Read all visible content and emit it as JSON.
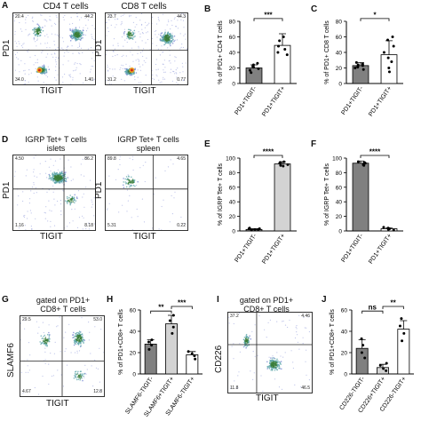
{
  "panels": {
    "A": {
      "letter": "A",
      "titles": [
        "CD4 T cells",
        "CD8 T cells"
      ],
      "x_axis": "TIGIT",
      "y_axis": "PD1",
      "plots": [
        {
          "q": [
            "20.4",
            "44.2",
            "34.0",
            "1.40"
          ]
        },
        {
          "q": [
            "23.7",
            "44.3",
            "31.2",
            "0.77"
          ]
        }
      ]
    },
    "B": {
      "letter": "B"
    },
    "C": {
      "letter": "C"
    },
    "D": {
      "letter": "D",
      "titles": [
        "IGRP Tet+ T cells\nislets",
        "IGRP Tet+ T cells\nspleen"
      ],
      "x_axis": "TIGIT",
      "y_axis": "PD1",
      "plots": [
        {
          "q": [
            "4.50",
            "86.2",
            "1.16",
            "8.18"
          ]
        },
        {
          "q": [
            "89.8",
            "4.65",
            "5.31",
            "0.22"
          ]
        }
      ]
    },
    "E": {
      "letter": "E"
    },
    "F": {
      "letter": "F"
    },
    "G": {
      "letter": "G",
      "title": "gated on PD1+\nCD8+ T cells",
      "x_axis": "TIGIT",
      "y_axis": "SLAMF6",
      "q": [
        "29.5",
        "53.0",
        "4.67",
        "12.8"
      ]
    },
    "H": {
      "letter": "H"
    },
    "I": {
      "letter": "I",
      "title": "gated on PD1+\nCD8+ T cells",
      "x_axis": "TIGIT",
      "y_axis": "CD226",
      "q": [
        "37.2",
        "4.46",
        "11.8",
        "46.5"
      ]
    },
    "J": {
      "letter": "J"
    }
  },
  "chart_data": [
    {
      "panel": "B",
      "type": "bar",
      "ylabel": "% of PD1+ CD4 T cells",
      "ylim": [
        0,
        80
      ],
      "yticks": [
        0,
        20,
        40,
        60,
        80
      ],
      "categories": [
        "PD1+TIGIT-",
        "PD1+TIGIT+"
      ],
      "values": [
        20,
        49
      ],
      "errors": [
        4,
        15
      ],
      "points": [
        [
          14,
          17,
          19,
          21,
          22,
          24,
          26
        ],
        [
          37,
          40,
          44,
          48,
          55,
          60
        ]
      ],
      "colors": [
        "#808080",
        "#ffffff"
      ],
      "sig": [
        {
          "from": 0,
          "to": 1,
          "label": "***"
        }
      ]
    },
    {
      "panel": "C",
      "type": "bar",
      "ylabel": "% of PD1+ CD8 T cells",
      "ylim": [
        0,
        80
      ],
      "yticks": [
        0,
        20,
        40,
        60,
        80
      ],
      "categories": [
        "PD1+TIGIT-",
        "PD1+TIGIT+"
      ],
      "values": [
        23,
        37
      ],
      "errors": [
        4,
        18
      ],
      "points": [
        [
          18,
          20,
          21,
          22,
          23,
          24,
          25,
          27
        ],
        [
          15,
          20,
          28,
          33,
          40,
          48,
          56,
          60
        ]
      ],
      "colors": [
        "#808080",
        "#ffffff"
      ],
      "sig": [
        {
          "from": 0,
          "to": 1,
          "label": "*"
        }
      ]
    },
    {
      "panel": "E",
      "type": "bar",
      "ylabel": "% of IGRP Tet+ T cells",
      "ylim": [
        0,
        100
      ],
      "yticks": [
        0,
        20,
        40,
        60,
        80,
        100
      ],
      "categories": [
        "PD1+TIGIT-",
        "PD1+TIGIT+"
      ],
      "values": [
        2,
        92
      ],
      "errors": [
        1,
        3
      ],
      "points": [
        [
          1,
          2,
          2,
          3,
          3,
          4
        ],
        [
          89,
          90,
          91,
          93,
          94,
          95
        ]
      ],
      "colors": [
        "#808080",
        "#d3d3d3"
      ],
      "sig": [
        {
          "from": 0,
          "to": 1,
          "label": "****"
        }
      ]
    },
    {
      "panel": "F",
      "type": "bar",
      "ylabel": "% of IGRP Tet+ T cells",
      "ylim": [
        0,
        100
      ],
      "yticks": [
        0,
        20,
        40,
        60,
        80,
        100
      ],
      "categories": [
        "PD1+TIGIT-",
        "PD1+TIGIT+"
      ],
      "values": [
        93,
        3
      ],
      "errors": [
        3,
        1
      ],
      "points": [
        [
          90,
          91,
          93,
          94,
          95
        ],
        [
          1,
          2,
          3,
          4,
          5
        ]
      ],
      "colors": [
        "#808080",
        "#ffffff"
      ],
      "sig": [
        {
          "from": 0,
          "to": 1,
          "label": "****"
        }
      ]
    },
    {
      "panel": "H",
      "type": "bar",
      "ylabel": "% of PD1+CD8+ T cells",
      "ylim": [
        0,
        60
      ],
      "yticks": [
        0,
        20,
        40,
        60
      ],
      "categories": [
        "SLAMF6-TIGIT-",
        "SLAMF6+TIGIT+",
        "SLAMF6-TIGIT+"
      ],
      "values": [
        28,
        47,
        18
      ],
      "errors": [
        4,
        8,
        3
      ],
      "points": [
        [
          23,
          27,
          30,
          32
        ],
        [
          38,
          44,
          50,
          55
        ],
        [
          14,
          17,
          19,
          21
        ]
      ],
      "colors": [
        "#808080",
        "#d3d3d3",
        "#ffffff"
      ],
      "sig": [
        {
          "from": 0,
          "to": 1,
          "label": "**"
        },
        {
          "from": 1,
          "to": 2,
          "label": "***"
        }
      ]
    },
    {
      "panel": "J",
      "type": "bar",
      "ylabel": "% of PD1+CD8+ T cells",
      "ylim": [
        0,
        60
      ],
      "yticks": [
        0,
        20,
        40,
        60
      ],
      "categories": [
        "CD226-TIGIT-",
        "CD226+TIGIT+",
        "CD226-TIGIT+"
      ],
      "values": [
        24,
        6,
        42
      ],
      "errors": [
        8,
        3,
        8
      ],
      "points": [
        [
          15,
          20,
          27,
          33
        ],
        [
          3,
          5,
          8,
          10
        ],
        [
          31,
          38,
          45,
          52
        ]
      ],
      "colors": [
        "#808080",
        "#d3d3d3",
        "#ffffff"
      ],
      "sig": [
        {
          "from": 0,
          "to": 1,
          "label": "ns"
        },
        {
          "from": 1,
          "to": 2,
          "label": "**"
        }
      ]
    }
  ]
}
